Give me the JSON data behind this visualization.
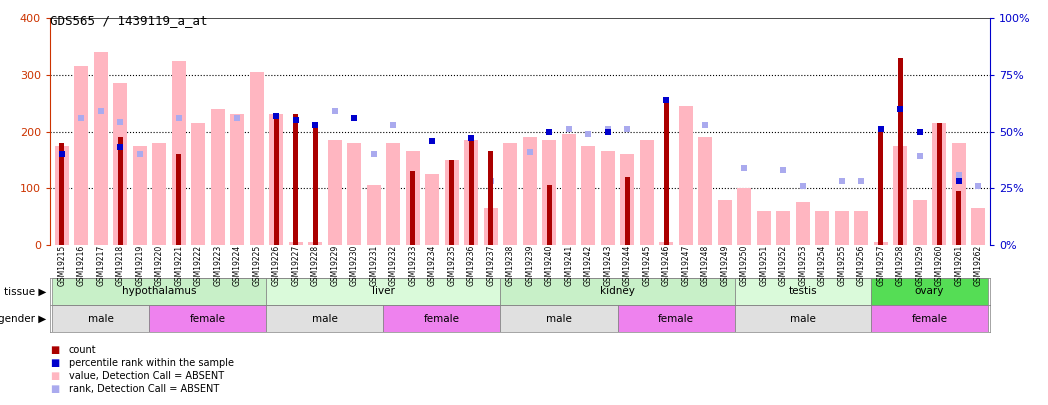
{
  "title": "GDS565 / 1439119_a_at",
  "samples": [
    "GSM19215",
    "GSM19216",
    "GSM19217",
    "GSM19218",
    "GSM19219",
    "GSM19220",
    "GSM19221",
    "GSM19222",
    "GSM19223",
    "GSM19224",
    "GSM19225",
    "GSM19226",
    "GSM19227",
    "GSM19228",
    "GSM19229",
    "GSM19230",
    "GSM19231",
    "GSM19232",
    "GSM19233",
    "GSM19234",
    "GSM19235",
    "GSM19236",
    "GSM19237",
    "GSM19238",
    "GSM19239",
    "GSM19240",
    "GSM19241",
    "GSM19242",
    "GSM19243",
    "GSM19244",
    "GSM19245",
    "GSM19246",
    "GSM19247",
    "GSM19248",
    "GSM19249",
    "GSM19250",
    "GSM19251",
    "GSM19252",
    "GSM19253",
    "GSM19254",
    "GSM19255",
    "GSM19256",
    "GSM19257",
    "GSM19258",
    "GSM19259",
    "GSM19260",
    "GSM19261",
    "GSM19262"
  ],
  "count": [
    180,
    0,
    0,
    190,
    0,
    0,
    160,
    0,
    0,
    0,
    0,
    230,
    230,
    210,
    0,
    0,
    0,
    0,
    130,
    0,
    150,
    185,
    165,
    0,
    0,
    105,
    0,
    0,
    0,
    120,
    0,
    255,
    0,
    0,
    0,
    0,
    0,
    0,
    0,
    0,
    0,
    0,
    205,
    330,
    0,
    215,
    95,
    0
  ],
  "absent_value": [
    175,
    315,
    340,
    285,
    175,
    180,
    325,
    215,
    240,
    230,
    305,
    230,
    5,
    5,
    185,
    180,
    105,
    180,
    165,
    125,
    150,
    185,
    65,
    180,
    190,
    185,
    195,
    175,
    165,
    160,
    185,
    5,
    245,
    190,
    80,
    100,
    60,
    60,
    75,
    60,
    60,
    60,
    5,
    175,
    80,
    215,
    180,
    65
  ],
  "percentile_rank_pct": [
    40,
    0,
    0,
    43,
    0,
    0,
    0,
    0,
    0,
    0,
    0,
    57,
    55,
    53,
    0,
    56,
    0,
    0,
    0,
    46,
    0,
    47,
    0,
    0,
    0,
    50,
    0,
    0,
    50,
    0,
    0,
    64,
    0,
    0,
    0,
    0,
    0,
    0,
    0,
    0,
    0,
    0,
    51,
    60,
    50,
    0,
    28,
    0
  ],
  "absent_rank_pct": [
    0,
    56,
    59,
    54,
    40,
    0,
    56,
    0,
    0,
    56,
    0,
    0,
    0,
    0,
    59,
    0,
    40,
    53,
    0,
    0,
    0,
    0,
    28,
    0,
    41,
    0,
    51,
    49,
    51,
    51,
    0,
    0,
    0,
    53,
    0,
    34,
    0,
    33,
    26,
    0,
    28,
    28,
    0,
    0,
    39,
    0,
    31,
    26
  ],
  "tissues": [
    {
      "label": "hypothalamus",
      "start": 0,
      "end": 11,
      "color": "#C8F0C8"
    },
    {
      "label": "liver",
      "start": 11,
      "end": 23,
      "color": "#DAFADA"
    },
    {
      "label": "kidney",
      "start": 23,
      "end": 35,
      "color": "#C8F0C8"
    },
    {
      "label": "testis",
      "start": 35,
      "end": 42,
      "color": "#DAFADA"
    },
    {
      "label": "ovary",
      "start": 42,
      "end": 48,
      "color": "#55DD55"
    }
  ],
  "genders": [
    {
      "label": "male",
      "start": 0,
      "end": 5,
      "color": "#E0E0E0"
    },
    {
      "label": "female",
      "start": 5,
      "end": 11,
      "color": "#EE82EE"
    },
    {
      "label": "male",
      "start": 11,
      "end": 17,
      "color": "#E0E0E0"
    },
    {
      "label": "female",
      "start": 17,
      "end": 23,
      "color": "#EE82EE"
    },
    {
      "label": "male",
      "start": 23,
      "end": 29,
      "color": "#E0E0E0"
    },
    {
      "label": "female",
      "start": 29,
      "end": 35,
      "color": "#EE82EE"
    },
    {
      "label": "male",
      "start": 35,
      "end": 42,
      "color": "#E0E0E0"
    },
    {
      "label": "female",
      "start": 42,
      "end": 48,
      "color": "#EE82EE"
    }
  ],
  "ylim_left": [
    0,
    400
  ],
  "ylim_right": [
    0,
    100
  ],
  "yticks_left": [
    0,
    100,
    200,
    300,
    400
  ],
  "yticks_right": [
    0,
    25,
    50,
    75,
    100
  ],
  "color_count": "#AA0000",
  "color_absent_value": "#FFB6C1",
  "color_percentile": "#0000CC",
  "color_absent_rank": "#AAAAEE",
  "left_color": "#CC3300",
  "right_color": "#0000CC"
}
